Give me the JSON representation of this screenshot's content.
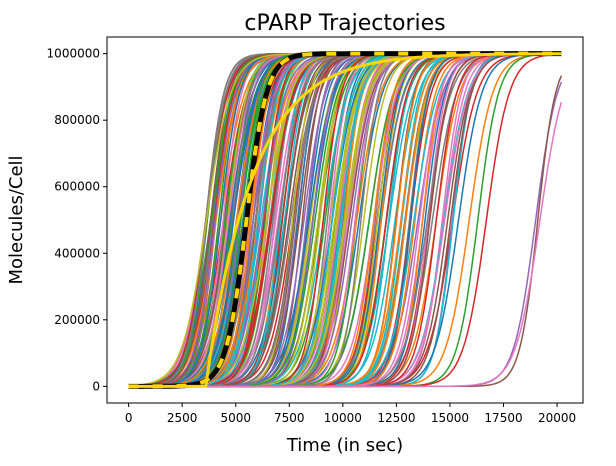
{
  "chart_data": {
    "type": "line",
    "title": "cPARP Trajectories",
    "xlabel": "Time (in sec)",
    "ylabel": "Molecules/Cell",
    "xlim": [
      -1010,
      21210
    ],
    "ylim": [
      -50000,
      1050000
    ],
    "xticks": [
      0,
      2500,
      5000,
      7500,
      10000,
      12500,
      15000,
      17500,
      20000
    ],
    "yticks": [
      0,
      200000,
      400000,
      600000,
      800000,
      1000000
    ],
    "grid": false,
    "legend": "none",
    "trajectories": {
      "count": 240,
      "max_value": 1000000,
      "time_range": [
        0,
        20200
      ],
      "midpoint_time_range": [
        3600,
        15200
      ],
      "rise_width": 480,
      "late_outlier_midpoints": [
        15400,
        15900,
        16300,
        16700,
        19000,
        19100,
        19200
      ],
      "palette": [
        "#1f77b4",
        "#ff7f0e",
        "#2ca02c",
        "#d62728",
        "#9467bd",
        "#8c564b",
        "#e377c2",
        "#7f7f7f",
        "#bcbd22",
        "#17becf"
      ]
    },
    "series": [
      {
        "kind": "mean",
        "color": "#000000",
        "dash_color": "#ffd700",
        "midpoint": 5500,
        "width": 470
      },
      {
        "kind": "exponential-fit",
        "color": "#ffd700",
        "start": 3600,
        "tau": 2200
      }
    ]
  }
}
